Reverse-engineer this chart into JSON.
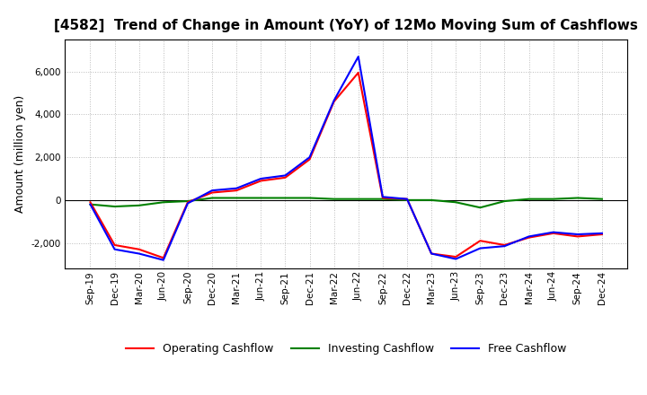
{
  "title": "[4582]  Trend of Change in Amount (YoY) of 12Mo Moving Sum of Cashflows",
  "ylabel": "Amount (million yen)",
  "x_labels": [
    "Sep-19",
    "Dec-19",
    "Mar-20",
    "Jun-20",
    "Sep-20",
    "Dec-20",
    "Mar-21",
    "Jun-21",
    "Sep-21",
    "Dec-21",
    "Mar-22",
    "Jun-22",
    "Sep-22",
    "Dec-22",
    "Mar-23",
    "Jun-23",
    "Sep-23",
    "Dec-23",
    "Mar-24",
    "Jun-24",
    "Sep-24",
    "Dec-24"
  ],
  "operating": [
    -100,
    -2100,
    -2300,
    -2700,
    -100,
    350,
    450,
    900,
    1050,
    1900,
    4600,
    5950,
    100,
    50,
    -2500,
    -2650,
    -1900,
    -2100,
    -1750,
    -1550,
    -1700,
    -1600
  ],
  "investing": [
    -200,
    -300,
    -250,
    -100,
    -50,
    100,
    100,
    100,
    100,
    100,
    50,
    50,
    50,
    0,
    0,
    -100,
    -350,
    -50,
    50,
    50,
    100,
    50
  ],
  "free": [
    -200,
    -2300,
    -2500,
    -2800,
    -150,
    450,
    550,
    1000,
    1150,
    2000,
    4650,
    6700,
    150,
    50,
    -2500,
    -2750,
    -2250,
    -2150,
    -1700,
    -1500,
    -1600,
    -1550
  ],
  "operating_color": "#ff0000",
  "investing_color": "#008000",
  "free_color": "#0000ff",
  "ylim": [
    -3200,
    7500
  ],
  "yticks": [
    -2000,
    0,
    2000,
    4000,
    6000
  ],
  "background_color": "#ffffff",
  "grid_color": "#bbbbbb"
}
